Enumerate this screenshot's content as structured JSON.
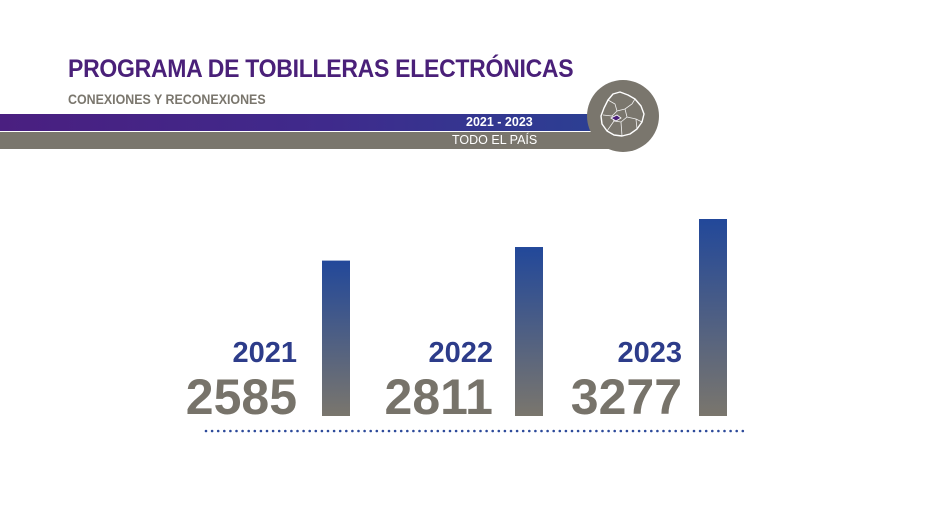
{
  "header": {
    "title": "PROGRAMA DE TOBILLERAS ELECTRÓNICAS",
    "subtitle": "CONEXIONES Y RECONEXIONES",
    "period": "2021 - 2023",
    "scope": "TODO EL PAÍS",
    "map_icon": "uruguay-map-icon"
  },
  "colors": {
    "title": "#4a2079",
    "year_labels": "#2d3c8a",
    "value_labels": "#77736a",
    "bar_top": "#22489a",
    "bar_bottom": "#7a766d",
    "baseline_dots": "#2d4a9a"
  },
  "chart_data": {
    "type": "bar",
    "categories": [
      "2021",
      "2022",
      "2023"
    ],
    "values": [
      2585,
      2811,
      3277
    ],
    "value_labels": [
      "2585",
      "2811",
      "3277"
    ],
    "title": "PROGRAMA DE TOBILLERAS ELECTRÓNICAS",
    "subtitle": "CONEXIONES Y RECONEXIONES",
    "xlabel": "",
    "ylabel": "",
    "ylim": [
      0,
      3277
    ],
    "grid": false,
    "legend": "none"
  }
}
